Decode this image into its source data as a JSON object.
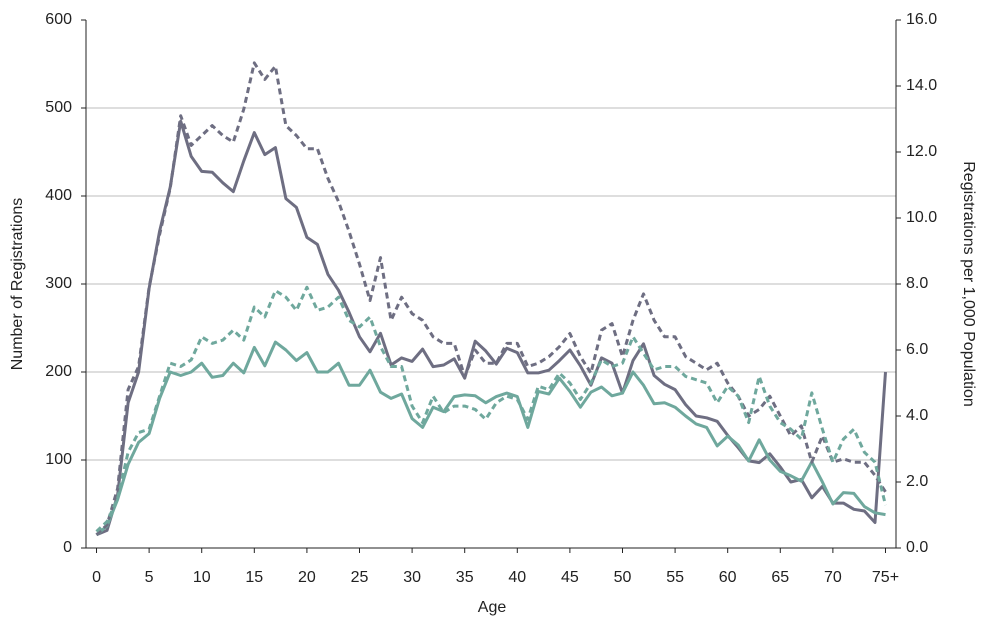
{
  "chart_data": {
    "type": "line",
    "x_label": "Age",
    "y_label": "Number of Registrations",
    "y2_label": "Registrations per 1,000 Population",
    "x": [
      0,
      1,
      2,
      3,
      4,
      5,
      6,
      7,
      8,
      9,
      10,
      11,
      12,
      13,
      14,
      15,
      16,
      17,
      18,
      19,
      20,
      21,
      22,
      23,
      24,
      25,
      26,
      27,
      28,
      29,
      30,
      31,
      32,
      33,
      34,
      35,
      36,
      37,
      38,
      39,
      40,
      41,
      42,
      43,
      44,
      45,
      46,
      47,
      48,
      49,
      50,
      51,
      52,
      53,
      54,
      55,
      56,
      57,
      58,
      59,
      60,
      61,
      62,
      63,
      64,
      65,
      66,
      67,
      68,
      69,
      70,
      71,
      72,
      73,
      74,
      75
    ],
    "xlim": [
      -1,
      76
    ],
    "xticks": [
      0,
      5,
      10,
      15,
      20,
      25,
      30,
      35,
      40,
      45,
      50,
      55,
      60,
      65,
      70,
      {
        "value": 75,
        "label": "75+"
      }
    ],
    "ylim": [
      0,
      600
    ],
    "yticks": [
      0,
      100,
      200,
      300,
      400,
      500,
      600
    ],
    "y2lim": [
      0,
      16
    ],
    "y2ticks": [
      {
        "value": 0,
        "label": "0.0"
      },
      {
        "value": 2,
        "label": "2.0"
      },
      {
        "value": 4,
        "label": "4.0"
      },
      {
        "value": 6,
        "label": "6.0"
      },
      {
        "value": 8,
        "label": "8.0"
      },
      {
        "value": 10,
        "label": "10.0"
      },
      {
        "value": 12,
        "label": "12.0"
      },
      {
        "value": 14,
        "label": "14.0"
      },
      {
        "value": 16,
        "label": "16.0"
      }
    ],
    "grid": true,
    "series": [
      {
        "color": "#6e6e82",
        "dashed": false,
        "values": [
          15,
          20,
          60,
          165,
          200,
          295,
          360,
          410,
          485,
          445,
          428,
          427,
          415,
          405,
          440,
          472,
          447,
          455,
          397,
          387,
          353,
          345,
          311,
          293,
          268,
          240,
          223,
          244,
          208,
          216,
          212,
          226,
          206,
          208,
          215,
          193,
          235,
          224,
          209,
          227,
          222,
          199,
          199,
          202,
          213,
          225,
          207,
          185,
          216,
          210,
          176,
          213,
          232,
          196,
          186,
          180,
          163,
          150,
          148,
          144,
          128,
          114,
          99,
          97,
          107,
          92,
          75,
          78,
          57,
          70,
          51,
          51,
          44,
          42,
          29,
          200
        ]
      },
      {
        "color": "#6fa89d",
        "dashed": false,
        "values": [
          15,
          25,
          55,
          95,
          120,
          130,
          170,
          200,
          196,
          200,
          210,
          194,
          196,
          210,
          199,
          228,
          207,
          234,
          225,
          213,
          222,
          200,
          200,
          210,
          185,
          185,
          202,
          177,
          170,
          175,
          147,
          137,
          160,
          155,
          172,
          174,
          173,
          165,
          172,
          176,
          172,
          137,
          178,
          175,
          193,
          178,
          160,
          177,
          183,
          173,
          176,
          200,
          185,
          164,
          165,
          160,
          150,
          141,
          137,
          116,
          127,
          117,
          99,
          123,
          100,
          87,
          82,
          76,
          98,
          75,
          50,
          63,
          62,
          47,
          40,
          38
        ]
      },
      {
        "color": "#6e6e82",
        "dashed": true,
        "axis": "y2",
        "values": [
          0.4,
          0.7,
          1.8,
          4.8,
          5.5,
          7.9,
          9.5,
          10.9,
          13.1,
          12.2,
          12.5,
          12.8,
          12.5,
          12.3,
          13.3,
          14.7,
          14.2,
          14.6,
          12.8,
          12.5,
          12.1,
          12.1,
          11.2,
          10.5,
          9.6,
          8.6,
          7.5,
          8.8,
          6.9,
          7.6,
          7.1,
          6.9,
          6.4,
          6.2,
          6.2,
          5.2,
          6.0,
          5.6,
          5.6,
          6.2,
          6.2,
          5.5,
          5.6,
          5.8,
          6.1,
          6.5,
          5.8,
          5.3,
          6.6,
          6.8,
          5.8,
          6.9,
          7.7,
          6.9,
          6.4,
          6.4,
          5.8,
          5.6,
          5.4,
          5.6,
          5.0,
          4.6,
          4.0,
          4.2,
          4.6,
          4.0,
          3.4,
          3.7,
          2.6,
          3.4,
          2.6,
          2.7,
          2.6,
          2.6,
          2.2,
          1.7
        ]
      },
      {
        "color": "#6fa89d",
        "dashed": true,
        "axis": "y2",
        "values": [
          0.5,
          0.8,
          1.5,
          2.9,
          3.5,
          3.6,
          4.6,
          5.6,
          5.5,
          5.7,
          6.4,
          6.2,
          6.3,
          6.6,
          6.3,
          7.3,
          7.0,
          7.8,
          7.6,
          7.2,
          7.9,
          7.2,
          7.3,
          7.6,
          6.9,
          6.7,
          7.0,
          6.1,
          5.5,
          5.5,
          4.3,
          3.8,
          4.6,
          4.1,
          4.3,
          4.3,
          4.2,
          3.9,
          4.4,
          4.6,
          4.5,
          3.9,
          4.9,
          4.8,
          5.3,
          5.0,
          4.5,
          5.0,
          5.7,
          5.5,
          5.6,
          6.4,
          5.9,
          5.4,
          5.5,
          5.5,
          5.2,
          5.1,
          5.0,
          4.4,
          4.9,
          4.6,
          3.8,
          5.2,
          4.3,
          3.8,
          3.6,
          3.3,
          4.7,
          3.6,
          2.6,
          3.3,
          3.6,
          2.9,
          2.6,
          1.3
        ]
      }
    ]
  }
}
